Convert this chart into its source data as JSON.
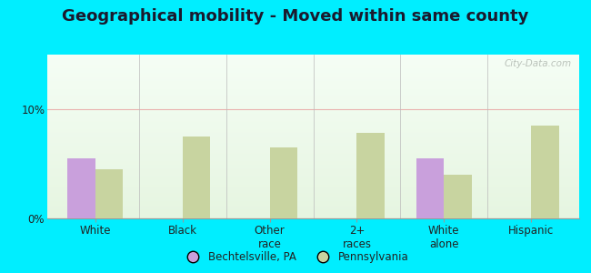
{
  "title": "Geographical mobility - Moved within same county",
  "categories": [
    "White",
    "Black",
    "Other\nrace",
    "2+\nraces",
    "White\nalone",
    "Hispanic"
  ],
  "bechtelsville_values": [
    5.5,
    null,
    null,
    null,
    5.5,
    null
  ],
  "pennsylvania_values": [
    4.5,
    7.5,
    6.5,
    7.8,
    4.0,
    8.5
  ],
  "ylim": [
    0,
    15
  ],
  "yticks": [
    0,
    10
  ],
  "ytick_labels": [
    "0%",
    "10%"
  ],
  "bar_width": 0.32,
  "bechtelsville_color": "#c9a0dc",
  "pennsylvania_color": "#c8d4a0",
  "outer_bg": "#00eeff",
  "title_fontsize": 13,
  "legend_labels": [
    "Bechtelsville, PA",
    "Pennsylvania"
  ],
  "watermark": "City-Data.com"
}
